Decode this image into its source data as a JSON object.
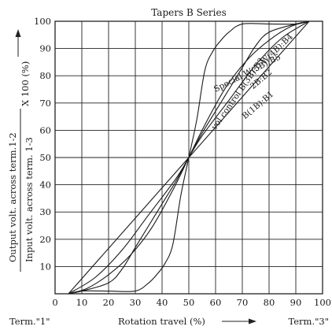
{
  "chart_data": {
    "type": "line",
    "title": "Tapers B Series",
    "xlabel": "Rotation travel (%)",
    "ylabel_line1": "Output volt. across term.1-2",
    "ylabel_line2": "Input volt. across term. 1-3",
    "ylabel_factor": "X 100 (%)",
    "x_end_left": "Term.\"1\"",
    "x_end_right": "Term.\"3\"",
    "xlim": [
      0,
      100
    ],
    "ylim": [
      0,
      100
    ],
    "x_ticks": [
      "0",
      "10",
      "20",
      "30",
      "40",
      "50",
      "60",
      "70",
      "80",
      "90",
      "100"
    ],
    "y_ticks": [
      "10",
      "20",
      "30",
      "40",
      "50",
      "60",
      "70",
      "80",
      "90",
      "100"
    ],
    "grid": true,
    "curve_label_prefix": "vol control",
    "series": [
      {
        "name": "B(1B):B1",
        "x": [
          5,
          50,
          95
        ],
        "y": [
          0,
          50,
          100
        ]
      },
      {
        "name": "2B:B2",
        "x": [
          5,
          15,
          25,
          35,
          45,
          50,
          55,
          65,
          75,
          85,
          95
        ],
        "y": [
          0,
          6,
          16,
          29,
          42,
          50,
          58,
          71,
          84,
          94,
          100
        ]
      },
      {
        "name": "B(3B):B3",
        "x": [
          5,
          12,
          20,
          28,
          36,
          44,
          50,
          56,
          64,
          72,
          80,
          88,
          95
        ],
        "y": [
          0,
          2,
          7,
          14,
          24,
          38,
          50,
          62,
          76,
          86,
          93,
          98,
          100
        ]
      },
      {
        "name": "W(4B):B4",
        "x": [
          5,
          10,
          20,
          25,
          30,
          35,
          40,
          45,
          50,
          55,
          60,
          65,
          70,
          75,
          80,
          90,
          95
        ],
        "y": [
          0,
          1,
          4,
          9,
          17,
          25,
          33,
          41,
          50,
          59,
          67,
          75,
          83,
          91,
          96,
          99,
          100
        ]
      },
      {
        "name": "Special W(5B):B5",
        "x": [
          5,
          10,
          20,
          30,
          35,
          38,
          41,
          44,
          47,
          50,
          53,
          56,
          59,
          62,
          65,
          70,
          80,
          90,
          95
        ],
        "y": [
          0,
          1,
          1,
          1,
          4,
          7,
          11,
          18,
          36,
          50,
          64,
          82,
          89,
          93,
          96,
          99,
          99,
          99,
          100
        ]
      }
    ]
  }
}
